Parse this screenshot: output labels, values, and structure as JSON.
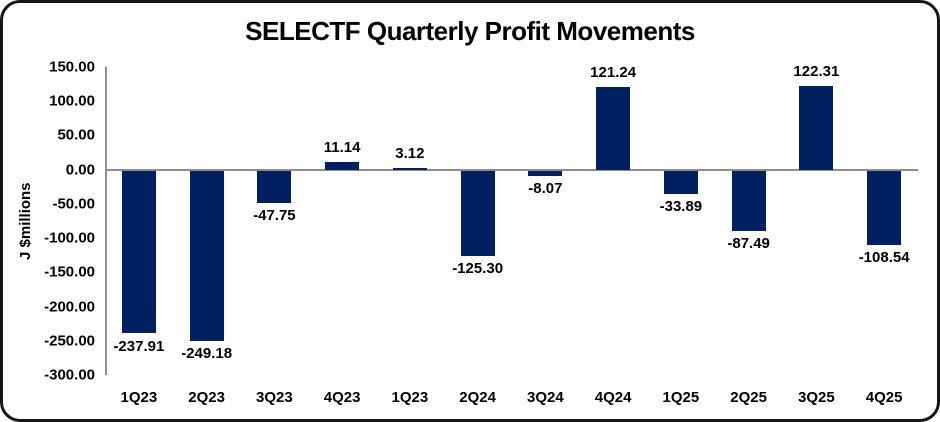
{
  "chart_data": {
    "type": "bar",
    "title": "SELECTF Quarterly Profit Movements",
    "xlabel": "",
    "ylabel": "J $millions",
    "categories": [
      "1Q23",
      "2Q23",
      "3Q23",
      "4Q23",
      "1Q23",
      "2Q24",
      "3Q24",
      "4Q24",
      "1Q25",
      "2Q25",
      "3Q25",
      "4Q25"
    ],
    "values": [
      -237.91,
      -249.18,
      -47.75,
      11.14,
      3.12,
      -125.3,
      -8.07,
      121.24,
      -33.89,
      -87.49,
      122.31,
      -108.54
    ],
    "data_labels": [
      "-237.91",
      "-249.18",
      "-47.75",
      "11.14",
      "3.12",
      "-125.30",
      "-8.07",
      "121.24",
      "-33.89",
      "-87.49",
      "122.31",
      "-108.54"
    ],
    "yticks": [
      "150.00",
      "100.00",
      "50.00",
      "0.00",
      "-50.00",
      "-100.00",
      "-150.00",
      "-200.00",
      "-250.00",
      "-300.00"
    ],
    "ylim": [
      -300,
      150
    ],
    "grid": false,
    "legend": false,
    "bar_color": "#002060",
    "axis_color": "#8e8e8e",
    "text_color": "#000000"
  }
}
